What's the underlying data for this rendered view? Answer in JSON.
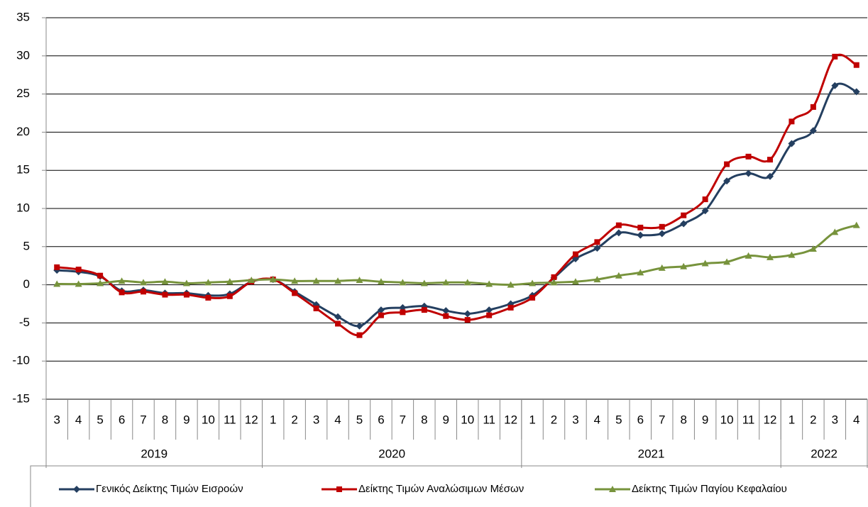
{
  "chart_data": {
    "type": "line",
    "groups": [
      {
        "name": "2019",
        "categories": [
          "3",
          "4",
          "5",
          "6",
          "7",
          "8",
          "9",
          "10",
          "11",
          "12"
        ]
      },
      {
        "name": "2020",
        "categories": [
          "1",
          "2",
          "3",
          "4",
          "5",
          "6",
          "7",
          "8",
          "9",
          "10",
          "11",
          "12"
        ]
      },
      {
        "name": "2021",
        "categories": [
          "1",
          "2",
          "3",
          "4",
          "5",
          "6",
          "7",
          "8",
          "9",
          "10",
          "11",
          "12"
        ]
      },
      {
        "name": "2022",
        "categories": [
          "1",
          "2",
          "3",
          "4"
        ]
      }
    ],
    "series": [
      {
        "name": "Γενικός Δείκτης Τιμών Εισροών",
        "color": "#243f60",
        "marker": "diamond",
        "values": [
          1.9,
          1.7,
          1.1,
          -0.8,
          -0.7,
          -1.1,
          -1.1,
          -1.4,
          -1.2,
          0.4,
          0.7,
          -0.9,
          -2.6,
          -4.2,
          -5.4,
          -3.3,
          -3.0,
          -2.8,
          -3.4,
          -3.8,
          -3.3,
          -2.5,
          -1.4,
          0.9,
          3.4,
          4.8,
          6.8,
          6.5,
          6.7,
          8.0,
          9.7,
          13.6,
          14.6,
          14.2,
          18.5,
          20.2,
          26.1,
          25.3
        ]
      },
      {
        "name": "Δείκτης Τιμών Αναλώσιμων Μέσων",
        "color": "#c00000",
        "marker": "square",
        "values": [
          2.3,
          2.0,
          1.2,
          -1.0,
          -0.9,
          -1.3,
          -1.3,
          -1.7,
          -1.5,
          0.4,
          0.7,
          -1.1,
          -3.1,
          -5.1,
          -6.6,
          -4.0,
          -3.6,
          -3.3,
          -4.1,
          -4.6,
          -4.0,
          -3.0,
          -1.7,
          1.0,
          4.0,
          5.6,
          7.8,
          7.5,
          7.6,
          9.1,
          11.2,
          15.8,
          16.8,
          16.4,
          21.4,
          23.3,
          29.9,
          28.8
        ]
      },
      {
        "name": "Δείκτης Τιμών Παγίου Κεφαλαίου",
        "color": "#77933c",
        "marker": "triangle",
        "values": [
          0.1,
          0.1,
          0.2,
          0.5,
          0.3,
          0.4,
          0.2,
          0.3,
          0.4,
          0.6,
          0.7,
          0.5,
          0.5,
          0.5,
          0.6,
          0.4,
          0.3,
          0.2,
          0.3,
          0.3,
          0.1,
          0.0,
          0.2,
          0.3,
          0.4,
          0.7,
          1.2,
          1.6,
          2.2,
          2.4,
          2.8,
          3.0,
          3.8,
          3.6,
          3.9,
          4.7,
          6.9,
          7.8
        ]
      }
    ],
    "ylim": [
      -15,
      35
    ],
    "yticks": [
      -15,
      -10,
      -5,
      0,
      5,
      10,
      15,
      20,
      25,
      30,
      35
    ],
    "grid": true,
    "legend": "bottom"
  }
}
